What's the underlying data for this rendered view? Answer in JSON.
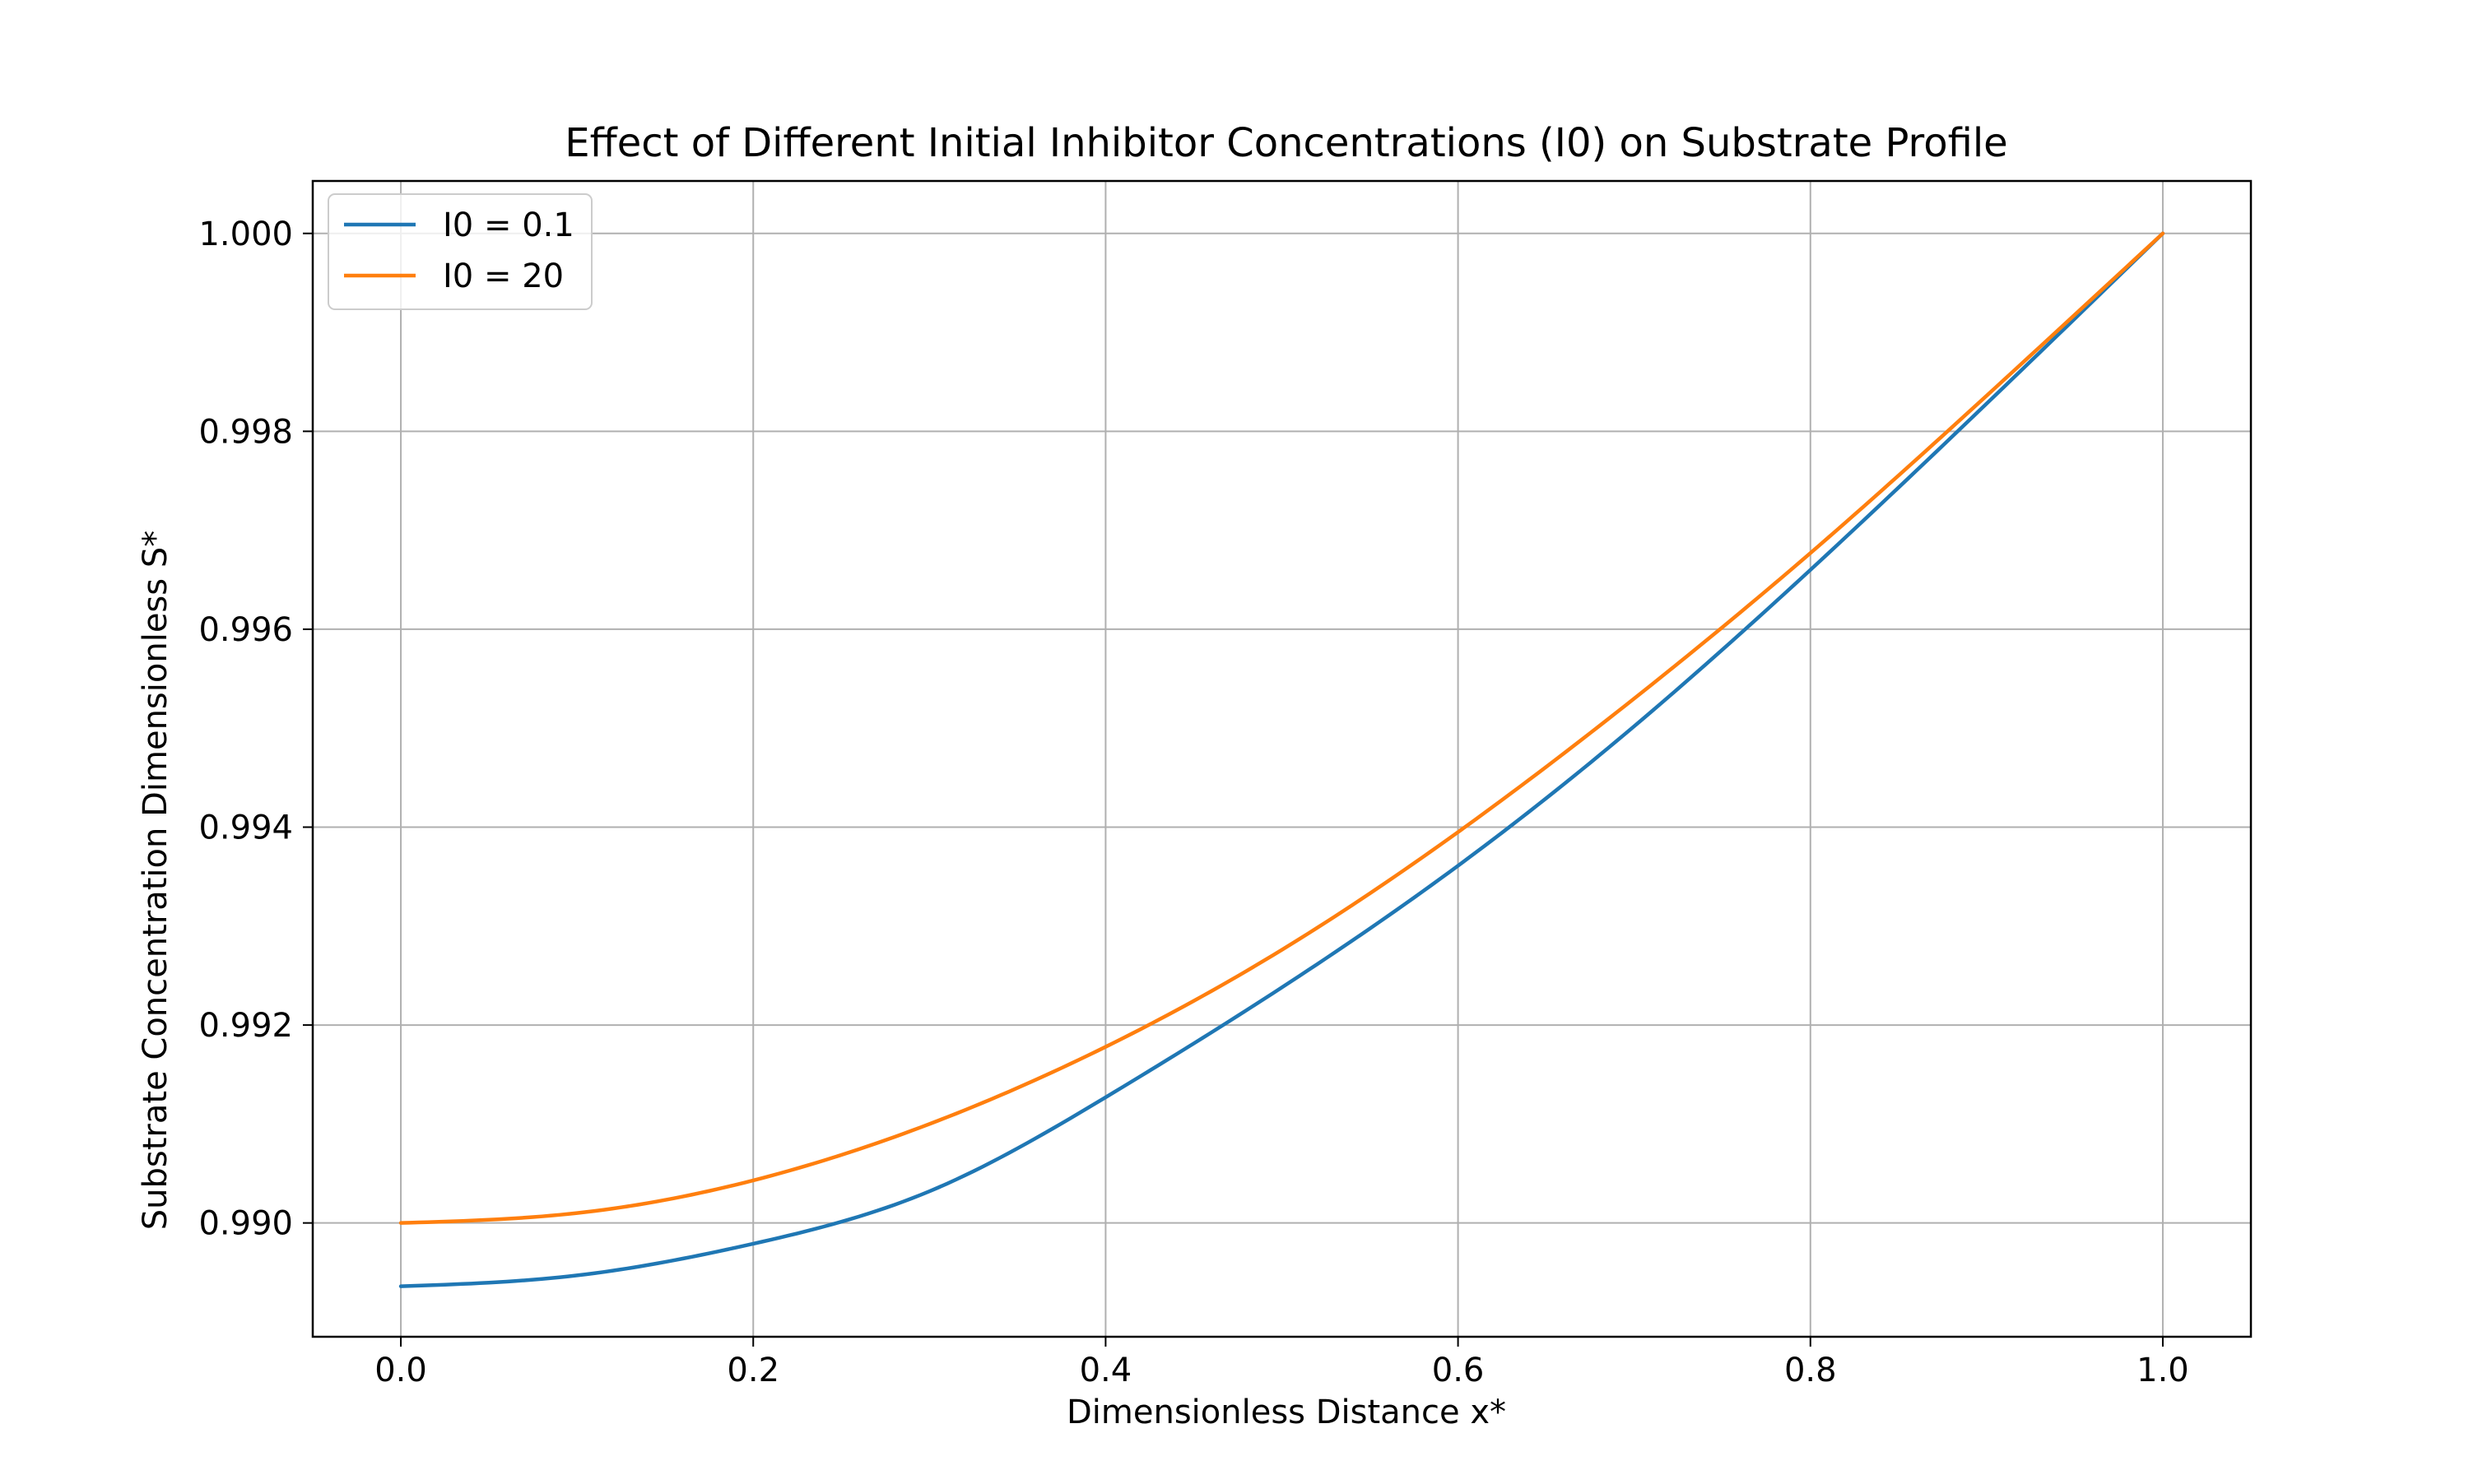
{
  "chart_data": {
    "type": "line",
    "title": "Effect of Different Initial Inhibitor Concentrations (I0) on Substrate Profile",
    "xlabel": "Dimensionless Distance x*",
    "ylabel": "Substrate Concentration Dimensionless S*",
    "xlim": [
      -0.05,
      1.05
    ],
    "ylim": [
      0.98885,
      1.00053
    ],
    "xticks": [
      0.0,
      0.2,
      0.4,
      0.6,
      0.8,
      1.0
    ],
    "xtick_labels": [
      "0.0",
      "0.2",
      "0.4",
      "0.6",
      "0.8",
      "1.0"
    ],
    "yticks": [
      0.99,
      0.992,
      0.994,
      0.996,
      0.998,
      1.0
    ],
    "ytick_labels": [
      "0.990",
      "0.992",
      "0.994",
      "0.996",
      "0.998",
      "1.000"
    ],
    "grid": true,
    "legend_position": "top-left",
    "x": [
      0.0,
      0.1,
      0.2,
      0.3,
      0.4,
      0.5,
      0.6,
      0.7,
      0.8,
      0.9,
      1.0
    ],
    "series": [
      {
        "name": "I0 = 0.1",
        "color": "#1f77b4",
        "values": [
          0.98936,
          0.98947,
          0.98979,
          0.99032,
          0.99127,
          0.99238,
          0.99361,
          0.99502,
          0.9966,
          0.99828,
          1.0
        ]
      },
      {
        "name": "I0 = 20",
        "color": "#ff7f0e",
        "values": [
          0.99,
          0.9901,
          0.99043,
          0.991,
          0.99178,
          0.99276,
          0.99395,
          0.9953,
          0.99677,
          0.99836,
          1.0
        ]
      }
    ]
  }
}
